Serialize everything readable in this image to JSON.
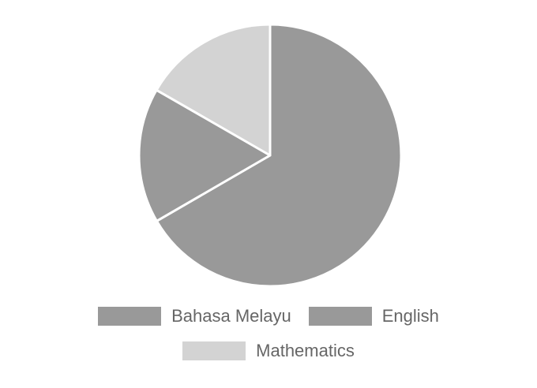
{
  "chart_data": {
    "type": "pie",
    "labels": [
      "Bahasa Melayu",
      "English",
      "Mathematics"
    ],
    "values": [
      66.7,
      16.7,
      16.7
    ],
    "colors": [
      "#999999",
      "#999999",
      "#d3d3d3"
    ],
    "slice_border_color": "#ffffff",
    "start_angle": "top",
    "direction": "clockwise",
    "legend": {
      "position": "bottom",
      "items": [
        {
          "label": "Bahasa Melayu",
          "color": "#999999"
        },
        {
          "label": "English",
          "color": "#999999"
        },
        {
          "label": "Mathematics",
          "color": "#d3d3d3"
        }
      ]
    }
  }
}
